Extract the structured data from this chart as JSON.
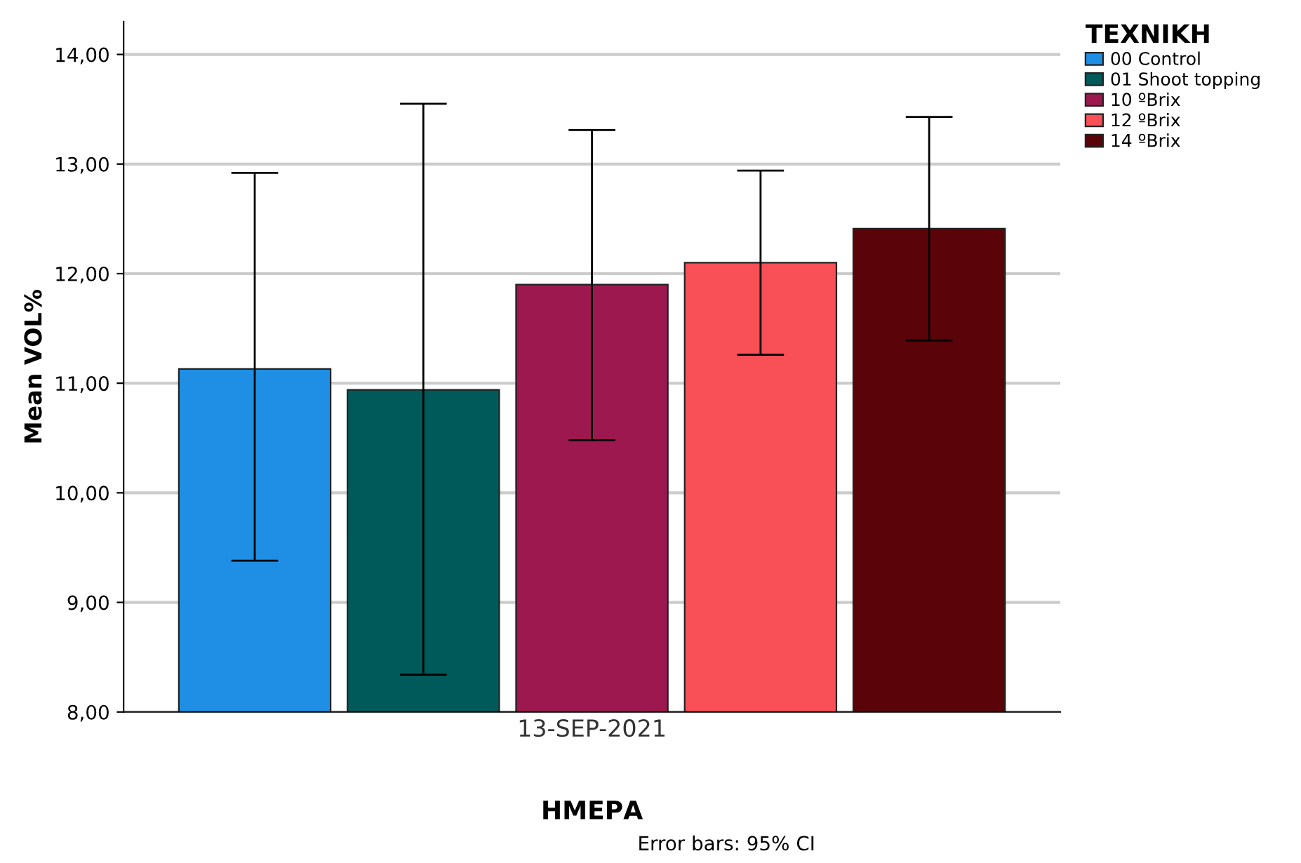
{
  "chart_data": {
    "type": "bar",
    "xlabel": "ΗΜΕΡΑ",
    "ylabel": "Mean VOL%",
    "legend_title": "ΤΕΧΝΙΚΗ",
    "categories": [
      "13-SEP-2021"
    ],
    "series": [
      {
        "name": "00 Control",
        "color": "#1f8fe5",
        "values": [
          11.13
        ],
        "errors": [
          [
            9.38,
            12.92
          ]
        ]
      },
      {
        "name": "01 Shoot topping",
        "color": "#005a5a",
        "values": [
          10.94
        ],
        "errors": [
          [
            8.34,
            13.55
          ]
        ]
      },
      {
        "name": "10 ºBrix",
        "color": "#9e1850",
        "values": [
          11.9
        ],
        "errors": [
          [
            10.48,
            13.31
          ]
        ]
      },
      {
        "name": "12 ºBrix",
        "color": "#f94f57",
        "values": [
          12.1
        ],
        "errors": [
          [
            11.26,
            12.94
          ]
        ]
      },
      {
        "name": "14 ºBrix",
        "color": "#5a0309",
        "values": [
          12.41
        ],
        "errors": [
          [
            11.39,
            13.43
          ]
        ]
      }
    ],
    "ylim": [
      8,
      14.3
    ],
    "yticks": [
      {
        "value": 8,
        "label": "8,00"
      },
      {
        "value": 9,
        "label": "9,00"
      },
      {
        "value": 10,
        "label": "10,00"
      },
      {
        "value": 11,
        "label": "11,00"
      },
      {
        "value": 12,
        "label": "12,00"
      },
      {
        "value": 13,
        "label": "13,00"
      },
      {
        "value": 14,
        "label": "14,00"
      }
    ],
    "grid": "y",
    "legend": "top right",
    "annotations": [
      "Error bars: 95% CI"
    ]
  }
}
